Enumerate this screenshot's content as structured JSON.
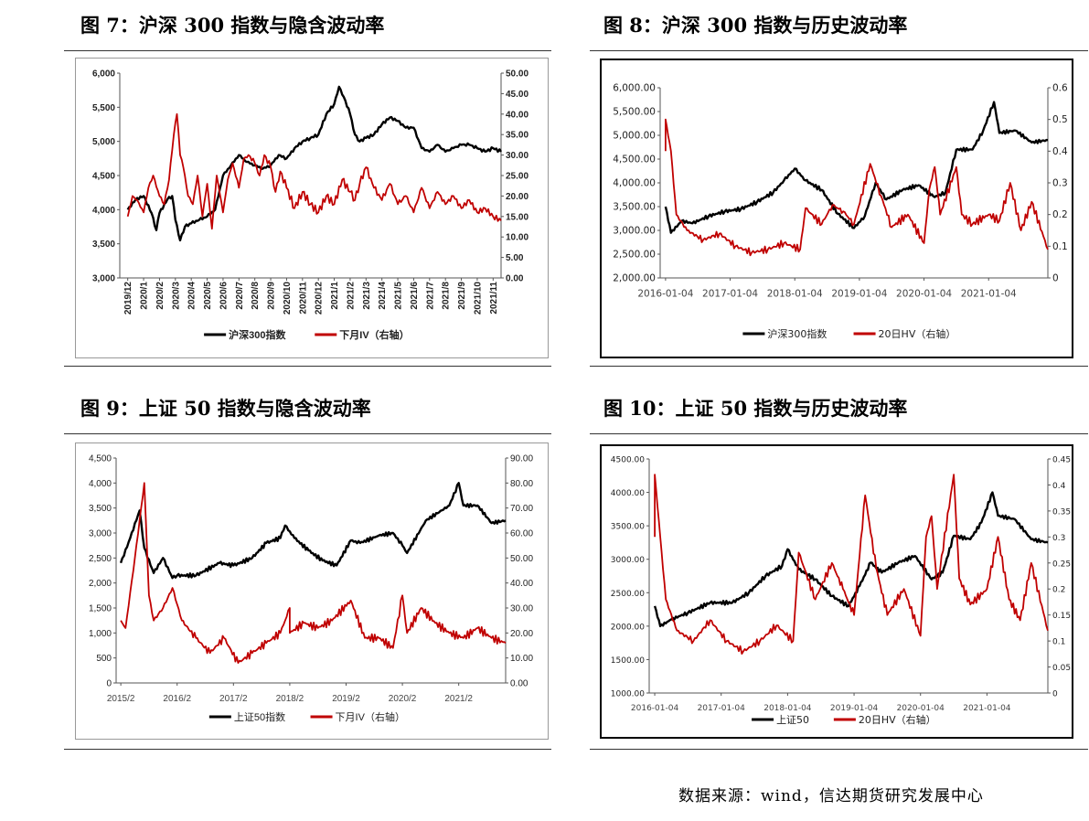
{
  "figures": [
    {
      "title": "图 7：沪深 300 指数与隐含波动率",
      "chart_data": {
        "type": "line",
        "dual_axis": true,
        "x_ticks": [
          "2019/12",
          "2020/1",
          "2020/2",
          "2020/3",
          "2020/4",
          "2020/5",
          "2020/6",
          "2020/7",
          "2020/8",
          "2020/9",
          "2020/10",
          "2020/11",
          "2020/12",
          "2021/1",
          "2021/2",
          "2021/3",
          "2021/4",
          "2021/5",
          "2021/6",
          "2021/7",
          "2021/8",
          "2021/9",
          "2021/10",
          "2021/11"
        ],
        "x_label_rotated": true,
        "ylim_left": [
          3000,
          6000
        ],
        "yticks_left": [
          "3,000",
          "3,500",
          "4,000",
          "4,500",
          "5,000",
          "5,500",
          "6,000"
        ],
        "ylim_right": [
          0,
          50
        ],
        "yticks_right": [
          "0.00",
          "5.00",
          "10.00",
          "15.00",
          "20.00",
          "25.00",
          "30.00",
          "35.00",
          "40.00",
          "45.00",
          "50.00"
        ],
        "grid": false,
        "legend_position": "bottom",
        "series": [
          {
            "name": "沪深300指数",
            "axis": "left",
            "color": "#000000",
            "x": [
              0,
              0.5,
              1,
              1.5,
              1.8,
              2,
              2.5,
              2.8,
              3,
              3.3,
              3.6,
              4,
              4.5,
              5,
              5.5,
              6,
              6.5,
              7,
              7.5,
              8,
              8.5,
              9,
              9.5,
              10,
              10.5,
              11,
              11.5,
              12,
              12.5,
              13,
              13.3,
              13.6,
              14,
              14.3,
              14.6,
              15,
              15.5,
              16,
              16.5,
              17,
              17.5,
              18,
              18.5,
              19,
              19.5,
              20,
              20.5,
              21,
              21.5,
              22,
              22.5,
              23,
              23.5
            ],
            "values": [
              4000,
              4150,
              4200,
              3950,
              3700,
              3950,
              4150,
              4200,
              3850,
              3550,
              3750,
              3800,
              3850,
              3900,
              4000,
              4500,
              4650,
              4800,
              4700,
              4650,
              4600,
              4650,
              4800,
              4750,
              4900,
              5000,
              5050,
              5100,
              5400,
              5550,
              5800,
              5650,
              5400,
              5100,
              5000,
              5050,
              5100,
              5250,
              5350,
              5300,
              5200,
              5200,
              4900,
              4850,
              4950,
              4850,
              4900,
              4950,
              4950,
              4900,
              4850,
              4900,
              4850
            ]
          },
          {
            "name": "下月IV（右轴）",
            "axis": "right",
            "color": "#c00000",
            "x": [
              0,
              0.3,
              0.6,
              1,
              1.3,
              1.6,
              2,
              2.3,
              2.6,
              2.9,
              3.1,
              3.3,
              3.5,
              3.8,
              4.1,
              4.4,
              4.7,
              5,
              5.3,
              5.6,
              6,
              6.3,
              6.6,
              7,
              7.3,
              7.6,
              8,
              8.3,
              8.6,
              9,
              9.3,
              9.6,
              10,
              10.5,
              11,
              11.5,
              12,
              12.5,
              13,
              13.5,
              14,
              14.3,
              14.6,
              15,
              15.5,
              16,
              16.5,
              17,
              17.5,
              18,
              18.5,
              19,
              19.5,
              20,
              20.5,
              21,
              21.5,
              22,
              22.5,
              23,
              23.5
            ],
            "values": [
              15,
              20,
              19,
              16,
              22,
              25,
              20,
              18,
              24,
              35,
              40,
              30,
              27,
              20,
              18,
              25,
              15,
              23,
              12,
              25,
              16,
              24,
              28,
              22,
              29,
              30,
              28,
              25,
              30,
              27,
              21,
              26,
              22,
              17,
              21,
              18,
              16,
              20,
              18,
              24,
              21,
              19,
              23,
              27,
              22,
              19,
              23,
              18,
              20,
              16,
              22,
              17,
              21,
              18,
              20,
              17,
              19,
              16,
              17,
              15,
              14
            ]
          }
        ]
      }
    },
    {
      "title": "图 8：沪深 300 指数与历史波动率",
      "chart_data": {
        "type": "line",
        "dual_axis": true,
        "x_ticks": [
          "2016-01-04",
          "2017-01-04",
          "2018-01-04",
          "2019-01-04",
          "2020-01-04",
          "2021-01-04"
        ],
        "ylim_left": [
          2000,
          6000
        ],
        "yticks_left": [
          "2,000.00",
          "2,500.00",
          "3,000.00",
          "3,500.00",
          "4,000.00",
          "4,500.00",
          "5,000.00",
          "5,500.00",
          "6,000.00"
        ],
        "ylim_right": [
          0,
          0.6
        ],
        "yticks_right": [
          "0",
          "0.1",
          "0.2",
          "0.3",
          "0.4",
          "0.5",
          "0.6"
        ],
        "grid": false,
        "legend_position": "bottom",
        "series": [
          {
            "name": "沪深300指数",
            "axis": "left",
            "color": "#000000",
            "x": [
              "2016-01",
              "2016-02",
              "2016-04",
              "2016-06",
              "2016-09",
              "2016-12",
              "2017-03",
              "2017-06",
              "2017-09",
              "2017-11",
              "2018-01",
              "2018-03",
              "2018-06",
              "2018-09",
              "2018-12",
              "2019-02",
              "2019-04",
              "2019-06",
              "2019-09",
              "2019-12",
              "2020-03",
              "2020-05",
              "2020-07",
              "2020-10",
              "2020-12",
              "2021-02",
              "2021-03",
              "2021-06",
              "2021-09",
              "2021-12"
            ],
            "values": [
              3500,
              2950,
              3200,
              3150,
              3300,
              3400,
              3450,
              3600,
              3800,
              4050,
              4300,
              4050,
              3850,
              3350,
              3050,
              3300,
              4000,
              3650,
              3850,
              3950,
              3700,
              3800,
              4700,
              4700,
              5100,
              5700,
              5050,
              5100,
              4850,
              4900
            ]
          },
          {
            "name": "20日HV（右轴）",
            "axis": "right",
            "color": "#c00000",
            "x": [
              "2016-01",
              "2016-01",
              "2016-02",
              "2016-03",
              "2016-05",
              "2016-08",
              "2016-11",
              "2017-02",
              "2017-05",
              "2017-08",
              "2017-11",
              "2018-02",
              "2018-03",
              "2018-06",
              "2018-08",
              "2018-10",
              "2018-12",
              "2019-03",
              "2019-05",
              "2019-07",
              "2019-10",
              "2020-01",
              "2020-02",
              "2020-03",
              "2020-04",
              "2020-07",
              "2020-08",
              "2020-10",
              "2021-01",
              "2021-03",
              "2021-05",
              "2021-07",
              "2021-09",
              "2021-12"
            ],
            "values": [
              0.4,
              0.5,
              0.4,
              0.2,
              0.15,
              0.12,
              0.14,
              0.1,
              0.08,
              0.09,
              0.11,
              0.09,
              0.22,
              0.17,
              0.23,
              0.21,
              0.17,
              0.36,
              0.26,
              0.16,
              0.2,
              0.11,
              0.28,
              0.35,
              0.2,
              0.35,
              0.2,
              0.17,
              0.2,
              0.18,
              0.3,
              0.15,
              0.24,
              0.09
            ]
          }
        ]
      }
    },
    {
      "title": "图 9：上证 50 指数与隐含波动率",
      "chart_data": {
        "type": "line",
        "dual_axis": true,
        "x_ticks": [
          "2015/2",
          "2016/2",
          "2017/2",
          "2018/2",
          "2019/2",
          "2020/2",
          "2021/2"
        ],
        "ylim_left": [
          0,
          4500
        ],
        "yticks_left": [
          "0",
          "500",
          "1,000",
          "1,500",
          "2,000",
          "2,500",
          "3,000",
          "3,500",
          "4,000",
          "4,500"
        ],
        "ylim_right": [
          0,
          90
        ],
        "yticks_right": [
          "0.00",
          "10.00",
          "20.00",
          "30.00",
          "40.00",
          "50.00",
          "60.00",
          "70.00",
          "80.00",
          "90.00"
        ],
        "grid": false,
        "legend_position": "bottom",
        "series": [
          {
            "name": "上证50指数",
            "axis": "left",
            "color": "#000000",
            "x": [
              "2015-02",
              "2015-04",
              "2015-06",
              "2015-07",
              "2015-09",
              "2015-11",
              "2016-01",
              "2016-02",
              "2016-06",
              "2016-11",
              "2017-02",
              "2017-06",
              "2017-09",
              "2017-12",
              "2018-01",
              "2018-03",
              "2018-06",
              "2018-09",
              "2018-12",
              "2019-03",
              "2019-05",
              "2019-09",
              "2019-12",
              "2020-02",
              "2020-03",
              "2020-07",
              "2020-12",
              "2021-02",
              "2021-03",
              "2021-06",
              "2021-09",
              "2021-12"
            ],
            "values": [
              2400,
              2900,
              3450,
              2700,
              2200,
              2500,
              2100,
              2150,
              2150,
              2400,
              2350,
              2500,
              2800,
              2900,
              3150,
              2900,
              2650,
              2450,
              2350,
              2850,
              2800,
              2950,
              3000,
              2750,
              2600,
              3250,
              3550,
              4000,
              3550,
              3550,
              3200,
              3250
            ]
          },
          {
            "name": "下月IV（右轴）",
            "axis": "right",
            "color": "#c00000",
            "x": [
              "2015-02",
              "2015-03",
              "2015-05",
              "2015-07",
              "2015-08",
              "2015-09",
              "2015-11",
              "2016-01",
              "2016-03",
              "2016-06",
              "2016-09",
              "2016-12",
              "2017-03",
              "2017-06",
              "2017-09",
              "2017-12",
              "2018-02",
              "2018-02",
              "2018-05",
              "2018-08",
              "2018-11",
              "2019-03",
              "2019-06",
              "2019-09",
              "2019-12",
              "2020-02",
              "2020-03",
              "2020-06",
              "2020-09",
              "2020-12",
              "2021-03",
              "2021-06",
              "2021-09",
              "2021-12"
            ],
            "values": [
              25,
              22,
              50,
              80,
              35,
              25,
              30,
              38,
              25,
              18,
              12,
              18,
              8,
              12,
              16,
              20,
              30,
              20,
              24,
              22,
              25,
              33,
              18,
              18,
              14,
              35,
              20,
              30,
              24,
              20,
              18,
              22,
              18,
              16
            ]
          }
        ]
      }
    },
    {
      "title": "图 10：上证 50 指数与历史波动率",
      "chart_data": {
        "type": "line",
        "dual_axis": true,
        "x_ticks": [
          "2016-01-04",
          "2017-01-04",
          "2018-01-04",
          "2019-01-04",
          "2020-01-04",
          "2021-01-04"
        ],
        "ylim_left": [
          1000,
          4500
        ],
        "yticks_left": [
          "1000.00",
          "1500.00",
          "2000.00",
          "2500.00",
          "3000.00",
          "3500.00",
          "4000.00",
          "4500.00"
        ],
        "ylim_right": [
          0,
          0.45
        ],
        "yticks_right": [
          "0",
          "0.05",
          "0.1",
          "0.15",
          "0.2",
          "0.25",
          "0.3",
          "0.35",
          "0.4",
          "0.45"
        ],
        "grid": false,
        "legend_position": "bottom",
        "series": [
          {
            "name": "上证50",
            "axis": "left",
            "color": "#000000",
            "x": [
              "2016-01",
              "2016-02",
              "2016-04",
              "2016-07",
              "2016-11",
              "2017-03",
              "2017-06",
              "2017-09",
              "2017-12",
              "2018-01",
              "2018-03",
              "2018-06",
              "2018-09",
              "2018-12",
              "2019-02",
              "2019-04",
              "2019-06",
              "2019-09",
              "2019-12",
              "2020-03",
              "2020-05",
              "2020-07",
              "2020-10",
              "2020-12",
              "2021-02",
              "2021-03",
              "2021-06",
              "2021-09",
              "2021-12"
            ],
            "values": [
              2300,
              2000,
              2100,
              2200,
              2350,
              2350,
              2500,
              2750,
              2900,
              3150,
              2850,
              2700,
              2450,
              2300,
              2600,
              2950,
              2800,
              2950,
              3050,
              2700,
              2800,
              3350,
              3300,
              3550,
              4000,
              3650,
              3600,
              3300,
              3250
            ]
          },
          {
            "name": "20日HV（右轴）",
            "axis": "right",
            "color": "#c00000",
            "x": [
              "2016-01",
              "2016-01",
              "2016-02",
              "2016-03",
              "2016-05",
              "2016-08",
              "2016-11",
              "2017-02",
              "2017-05",
              "2017-08",
              "2017-11",
              "2018-02",
              "2018-03",
              "2018-06",
              "2018-09",
              "2018-11",
              "2019-01",
              "2019-03",
              "2019-05",
              "2019-07",
              "2019-10",
              "2020-01",
              "2020-02",
              "2020-03",
              "2020-04",
              "2020-07",
              "2020-08",
              "2020-10",
              "2021-01",
              "2021-03",
              "2021-05",
              "2021-07",
              "2021-09",
              "2021-12"
            ],
            "values": [
              0.3,
              0.42,
              0.3,
              0.18,
              0.12,
              0.1,
              0.14,
              0.1,
              0.08,
              0.1,
              0.13,
              0.1,
              0.27,
              0.18,
              0.25,
              0.2,
              0.15,
              0.38,
              0.24,
              0.15,
              0.2,
              0.11,
              0.3,
              0.34,
              0.2,
              0.42,
              0.22,
              0.17,
              0.2,
              0.3,
              0.18,
              0.14,
              0.25,
              0.12
            ]
          }
        ]
      }
    }
  ],
  "source": "数据来源：wind，信达期货研究发展中心"
}
